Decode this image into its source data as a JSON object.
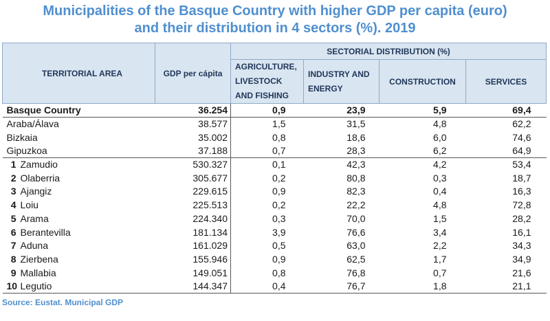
{
  "title_line1": "Municipalities of the Basque Country with higher GDP per capita (euro)",
  "title_line2": "and their distribution in 4 sectors (%). 2019",
  "headers": {
    "area": "TERRITORIAL AREA",
    "gdp": "GDP per cápita",
    "sectorial": "SECTORIAL DISTRIBUTION (%)",
    "agr_1": "AGRICULTURE,",
    "agr_2": "LIVESTOCK",
    "agr_3": "AND FISHING",
    "ind_1": "INDUSTRY AND",
    "ind_2": "ENERGY",
    "con": "CONSTRUCTION",
    "srv": "SERVICES"
  },
  "total": {
    "area": "Basque Country",
    "gdp": "36.254",
    "agr": "0,9",
    "ind": "23,9",
    "con": "5,9",
    "srv": "69,4"
  },
  "regions": [
    {
      "area": "Araba/Álava",
      "gdp": "38.577",
      "agr": "1,5",
      "ind": "31,5",
      "con": "4,8",
      "srv": "62,2"
    },
    {
      "area": "Bizkaia",
      "gdp": "35.002",
      "agr": "0,8",
      "ind": "18,6",
      "con": "6,0",
      "srv": "74,6"
    },
    {
      "area": "Gipuzkoa",
      "gdp": "37.188",
      "agr": "0,7",
      "ind": "28,3",
      "con": "6,2",
      "srv": "64,9"
    }
  ],
  "municipalities": [
    {
      "rank": "1",
      "area": "Zamudio",
      "gdp": "530.327",
      "agr": "0,1",
      "ind": "42,3",
      "con": "4,2",
      "srv": "53,4"
    },
    {
      "rank": "2",
      "area": "Olaberria",
      "gdp": "305.677",
      "agr": "0,2",
      "ind": "80,8",
      "con": "0,3",
      "srv": "18,7"
    },
    {
      "rank": "3",
      "area": "Ajangiz",
      "gdp": "229.615",
      "agr": "0,9",
      "ind": "82,3",
      "con": "0,4",
      "srv": "16,3"
    },
    {
      "rank": "4",
      "area": "Loiu",
      "gdp": "225.513",
      "agr": "0,2",
      "ind": "22,2",
      "con": "4,8",
      "srv": "72,8"
    },
    {
      "rank": "5",
      "area": "Arama",
      "gdp": "224.340",
      "agr": "0,3",
      "ind": "70,0",
      "con": "1,5",
      "srv": "28,2"
    },
    {
      "rank": "6",
      "area": "Berantevilla",
      "gdp": "181.134",
      "agr": "3,9",
      "ind": "76,6",
      "con": "3,4",
      "srv": "16,1"
    },
    {
      "rank": "7",
      "area": "Aduna",
      "gdp": "161.029",
      "agr": "0,5",
      "ind": "63,0",
      "con": "2,2",
      "srv": "34,3"
    },
    {
      "rank": "8",
      "area": "Zierbena",
      "gdp": "155.946",
      "agr": "0,9",
      "ind": "62,5",
      "con": "1,7",
      "srv": "34,9"
    },
    {
      "rank": "9",
      "area": "Mallabia",
      "gdp": "149.051",
      "agr": "0,8",
      "ind": "76,8",
      "con": "0,7",
      "srv": "21,6"
    },
    {
      "rank": "10",
      "area": "Legutio",
      "gdp": "144.347",
      "agr": "0,4",
      "ind": "76,7",
      "con": "1,8",
      "srv": "21,1"
    }
  ],
  "source": "Source: Eustat. Municipal GDP"
}
